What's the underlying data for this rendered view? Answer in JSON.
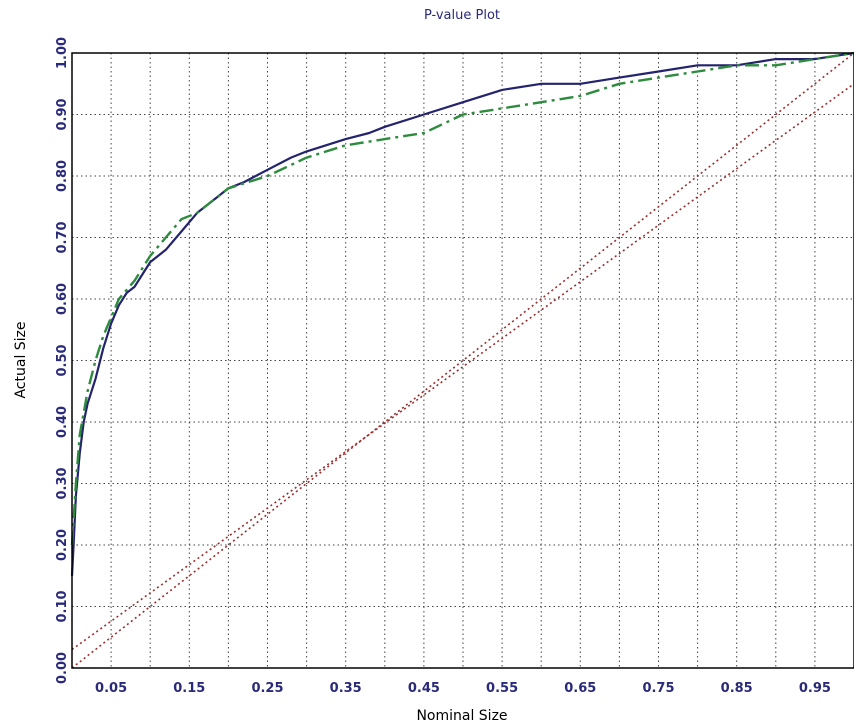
{
  "chart_data": {
    "type": "line",
    "title": "P-value Plot",
    "xlabel": "Nominal Size",
    "ylabel": "Actual Size",
    "xlim": [
      0,
      1
    ],
    "ylim": [
      0,
      1
    ],
    "grid": true,
    "x_ticks": [
      0.05,
      0.15,
      0.25,
      0.35,
      0.45,
      0.55,
      0.65,
      0.75,
      0.85,
      0.95
    ],
    "x_tick_labels": [
      "0.05",
      "0.15",
      "0.25",
      "0.35",
      "0.45",
      "0.55",
      "0.65",
      "0.75",
      "0.85",
      "0.95"
    ],
    "y_ticks": [
      0,
      0.1,
      0.2,
      0.3,
      0.4,
      0.5,
      0.6,
      0.7,
      0.8,
      0.9,
      1.0
    ],
    "y_tick_labels": [
      "0.00",
      "0.10",
      "0.20",
      "0.30",
      "0.40",
      "0.50",
      "0.60",
      "0.70",
      "0.80",
      "0.90",
      "1.00"
    ],
    "series": [
      {
        "style": "solid",
        "color": "#23236e",
        "points": [
          [
            0.0,
            0.15
          ],
          [
            0.002,
            0.2
          ],
          [
            0.005,
            0.28
          ],
          [
            0.01,
            0.35
          ],
          [
            0.015,
            0.4
          ],
          [
            0.02,
            0.43
          ],
          [
            0.03,
            0.47
          ],
          [
            0.04,
            0.52
          ],
          [
            0.05,
            0.56
          ],
          [
            0.06,
            0.59
          ],
          [
            0.07,
            0.61
          ],
          [
            0.08,
            0.62
          ],
          [
            0.09,
            0.64
          ],
          [
            0.1,
            0.66
          ],
          [
            0.12,
            0.68
          ],
          [
            0.14,
            0.71
          ],
          [
            0.16,
            0.74
          ],
          [
            0.18,
            0.76
          ],
          [
            0.2,
            0.78
          ],
          [
            0.22,
            0.79
          ],
          [
            0.25,
            0.81
          ],
          [
            0.28,
            0.83
          ],
          [
            0.3,
            0.84
          ],
          [
            0.35,
            0.86
          ],
          [
            0.38,
            0.87
          ],
          [
            0.4,
            0.88
          ],
          [
            0.45,
            0.9
          ],
          [
            0.5,
            0.92
          ],
          [
            0.55,
            0.94
          ],
          [
            0.6,
            0.95
          ],
          [
            0.65,
            0.95
          ],
          [
            0.7,
            0.96
          ],
          [
            0.75,
            0.97
          ],
          [
            0.8,
            0.98
          ],
          [
            0.85,
            0.98
          ],
          [
            0.9,
            0.99
          ],
          [
            0.95,
            0.99
          ],
          [
            1.0,
            1.0
          ]
        ]
      },
      {
        "style": "dash-dot",
        "color": "#2e8b3e",
        "points": [
          [
            0.0,
            0.2
          ],
          [
            0.005,
            0.3
          ],
          [
            0.01,
            0.38
          ],
          [
            0.02,
            0.45
          ],
          [
            0.03,
            0.5
          ],
          [
            0.04,
            0.54
          ],
          [
            0.05,
            0.57
          ],
          [
            0.06,
            0.6
          ],
          [
            0.08,
            0.63
          ],
          [
            0.1,
            0.67
          ],
          [
            0.12,
            0.7
          ],
          [
            0.14,
            0.73
          ],
          [
            0.16,
            0.74
          ],
          [
            0.18,
            0.76
          ],
          [
            0.2,
            0.78
          ],
          [
            0.25,
            0.8
          ],
          [
            0.3,
            0.83
          ],
          [
            0.35,
            0.85
          ],
          [
            0.4,
            0.86
          ],
          [
            0.45,
            0.87
          ],
          [
            0.5,
            0.9
          ],
          [
            0.55,
            0.91
          ],
          [
            0.6,
            0.92
          ],
          [
            0.65,
            0.93
          ],
          [
            0.7,
            0.95
          ],
          [
            0.75,
            0.96
          ],
          [
            0.8,
            0.97
          ],
          [
            0.85,
            0.98
          ],
          [
            0.9,
            0.98
          ],
          [
            0.95,
            0.99
          ],
          [
            1.0,
            1.0
          ]
        ]
      },
      {
        "style": "dotted",
        "color": "#9b2f2f",
        "points": [
          [
            0.0,
            0.0
          ],
          [
            1.0,
            1.0
          ]
        ]
      },
      {
        "style": "dotted",
        "color": "#9b2f2f",
        "points": [
          [
            0.0,
            0.03
          ],
          [
            1.0,
            0.95
          ]
        ]
      }
    ]
  }
}
